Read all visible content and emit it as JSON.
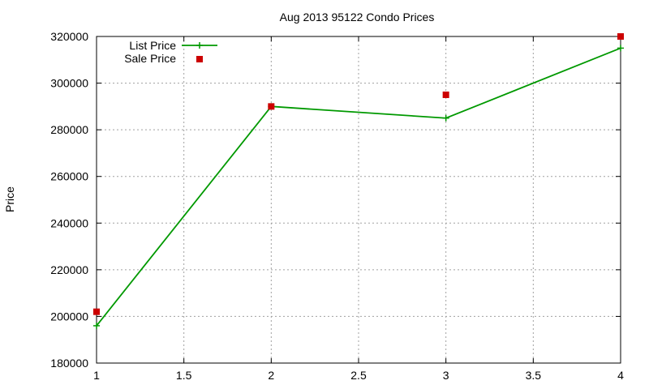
{
  "chart_data": {
    "type": "line",
    "title": "Aug 2013 95122 Condo Prices",
    "xlabel": "",
    "ylabel": "Price",
    "xlim": [
      1,
      4
    ],
    "ylim": [
      180000,
      320000
    ],
    "xticks": [
      "1",
      "1.5",
      "2",
      "2.5",
      "3",
      "3.5",
      "4"
    ],
    "yticks": [
      "180000",
      "200000",
      "220000",
      "240000",
      "260000",
      "280000",
      "300000",
      "320000"
    ],
    "grid": true,
    "legend_position": "top-left",
    "series": [
      {
        "name": "List Price",
        "style": "line+cross",
        "color": "#009900",
        "x": [
          1,
          2,
          3,
          4
        ],
        "y": [
          196000,
          290000,
          285000,
          315000
        ]
      },
      {
        "name": "Sale Price",
        "style": "square",
        "color": "#cc0000",
        "x": [
          1,
          2,
          3,
          4
        ],
        "y": [
          202000,
          290000,
          295000,
          320000
        ]
      }
    ]
  }
}
